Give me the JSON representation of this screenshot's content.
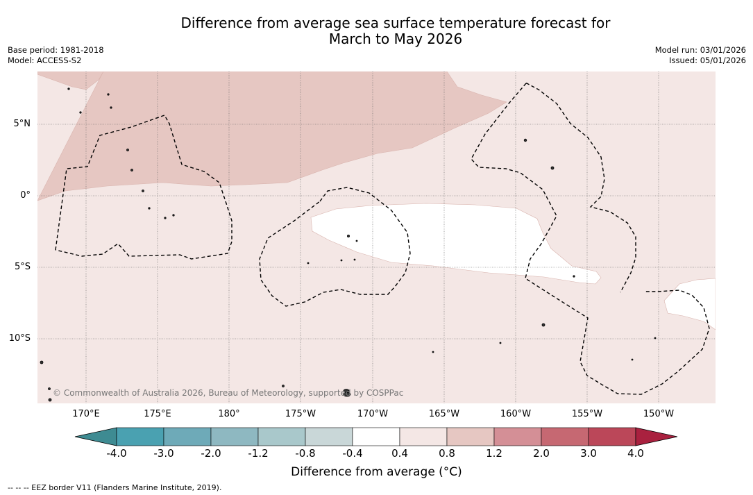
{
  "title_line1": "Difference from average sea surface temperature forecast for",
  "title_line2": "March to May 2026",
  "base_period": "Base period: 1981-2018",
  "model": "Model: ACCESS-S2",
  "model_run": "Model run: 03/01/2026",
  "issued": "Issued: 05/01/2026",
  "copyright": "© Commonwealth of Australia 2026, Bureau of Meteorology, supported by COSPPac",
  "lat_labels": [
    "5°N",
    "0°",
    "5°S",
    "10°S"
  ],
  "lon_labels": [
    "170°E",
    "175°E",
    "180°",
    "175°W",
    "170°W",
    "165°W",
    "160°W",
    "155°W",
    "150°W"
  ],
  "colorbar": {
    "ticks": [
      "-4.0",
      "-3.0",
      "-2.0",
      "-1.2",
      "-0.8",
      "-0.4",
      "0.4",
      "0.8",
      "1.2",
      "2.0",
      "3.0",
      "4.0"
    ],
    "colors": [
      "#3e8b92",
      "#4aa1b1",
      "#6eaab8",
      "#8eb8c1",
      "#a9c8cb",
      "#c9d7d8",
      "#ffffff",
      "#f4e7e5",
      "#e6c7c2",
      "#d48f96",
      "#c66872",
      "#bb4759",
      "#a9213f"
    ],
    "label": "Difference from average (°C)"
  },
  "fill_colors": {
    "band_0.4_0.8": "#f4e7e5",
    "band_0.8_1.2": "#e6c7c2",
    "band_-0.4_0.4": "#ffffff"
  },
  "legend_text": "--  --  -- EEZ border V11 (Flanders Marine Institute, 2019)."
}
